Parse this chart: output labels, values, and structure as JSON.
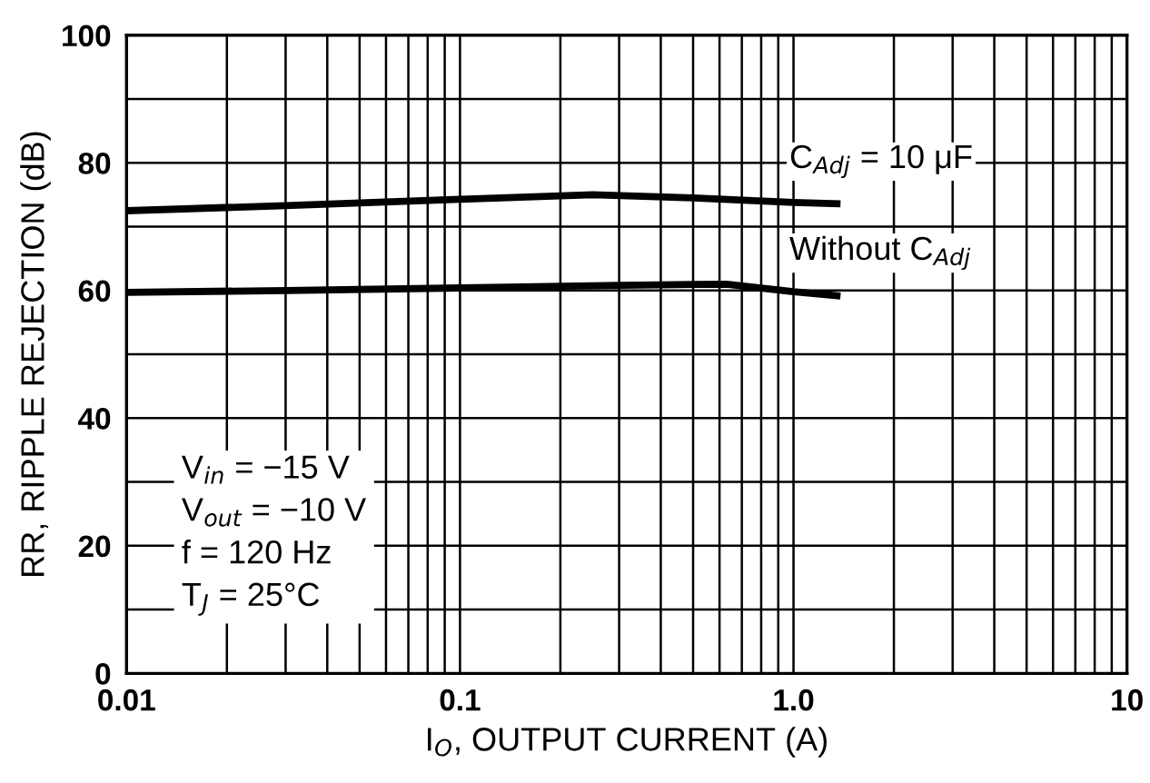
{
  "chart_data": {
    "type": "line",
    "xlabel": "I$_{O}$, OUTPUT CURRENT (A)",
    "ylabel": "RR, RIPPLE REJECTION (dB)",
    "log": "x",
    "grid": true,
    "legend": false,
    "marker": "none",
    "line_style": "solid",
    "xlim": [
      0.01,
      10
    ],
    "ylim": [
      0,
      100
    ],
    "xticks": [
      0.01,
      {
        "value": 0.02,
        "label": null
      },
      {
        "value": 0.03,
        "label": null
      },
      {
        "value": 0.04,
        "label": null
      },
      {
        "value": 0.05,
        "label": null
      },
      {
        "value": 0.06,
        "label": null
      },
      {
        "value": 0.07,
        "label": null
      },
      {
        "value": 0.08,
        "label": null
      },
      {
        "value": 0.09,
        "label": null
      },
      0.1,
      {
        "value": 0.2,
        "label": null
      },
      {
        "value": 0.3,
        "label": null
      },
      {
        "value": 0.4,
        "label": null
      },
      {
        "value": 0.5,
        "label": null
      },
      {
        "value": 0.6,
        "label": null
      },
      {
        "value": 0.7,
        "label": null
      },
      {
        "value": 0.8,
        "label": null
      },
      {
        "value": 0.9,
        "label": null
      },
      {
        "value": 1,
        "label": "1.0"
      },
      {
        "value": 2,
        "label": null
      },
      {
        "value": 3,
        "label": null
      },
      {
        "value": 4,
        "label": null
      },
      {
        "value": 5,
        "label": null
      },
      {
        "value": 6,
        "label": null
      },
      {
        "value": 7,
        "label": null
      },
      {
        "value": 8,
        "label": null
      },
      {
        "value": 9,
        "label": null
      },
      10
    ],
    "yticks": [
      0,
      {
        "value": 10,
        "label": null
      },
      20,
      {
        "value": 30,
        "label": null
      },
      40,
      {
        "value": 50,
        "label": null
      },
      60,
      {
        "value": 70,
        "label": null
      },
      80,
      {
        "value": 90,
        "label": null
      },
      100
    ],
    "series": [
      {
        "name": "C$_{Adj}$ = 10 μF",
        "color": "#000000",
        "x": [
          0.01,
          0.03,
          0.1,
          0.25,
          0.5,
          1.0,
          1.35
        ],
        "values": [
          72.5,
          73.3,
          74.3,
          75,
          74.5,
          73.8,
          73.6
        ]
      },
      {
        "name": "Without C$_{Adj}$",
        "color": "#000000",
        "x": [
          0.01,
          0.03,
          0.1,
          0.3,
          0.63,
          1.0,
          1.35
        ],
        "values": [
          59.7,
          60,
          60.4,
          60.8,
          61,
          59.8,
          59.2
        ]
      }
    ],
    "annotations": [
      "V$_{in}$ = −15 V",
      "V$_{out}$ = −10 V",
      "f = 120 Hz",
      "T$_{J}$ = 25°C"
    ]
  }
}
